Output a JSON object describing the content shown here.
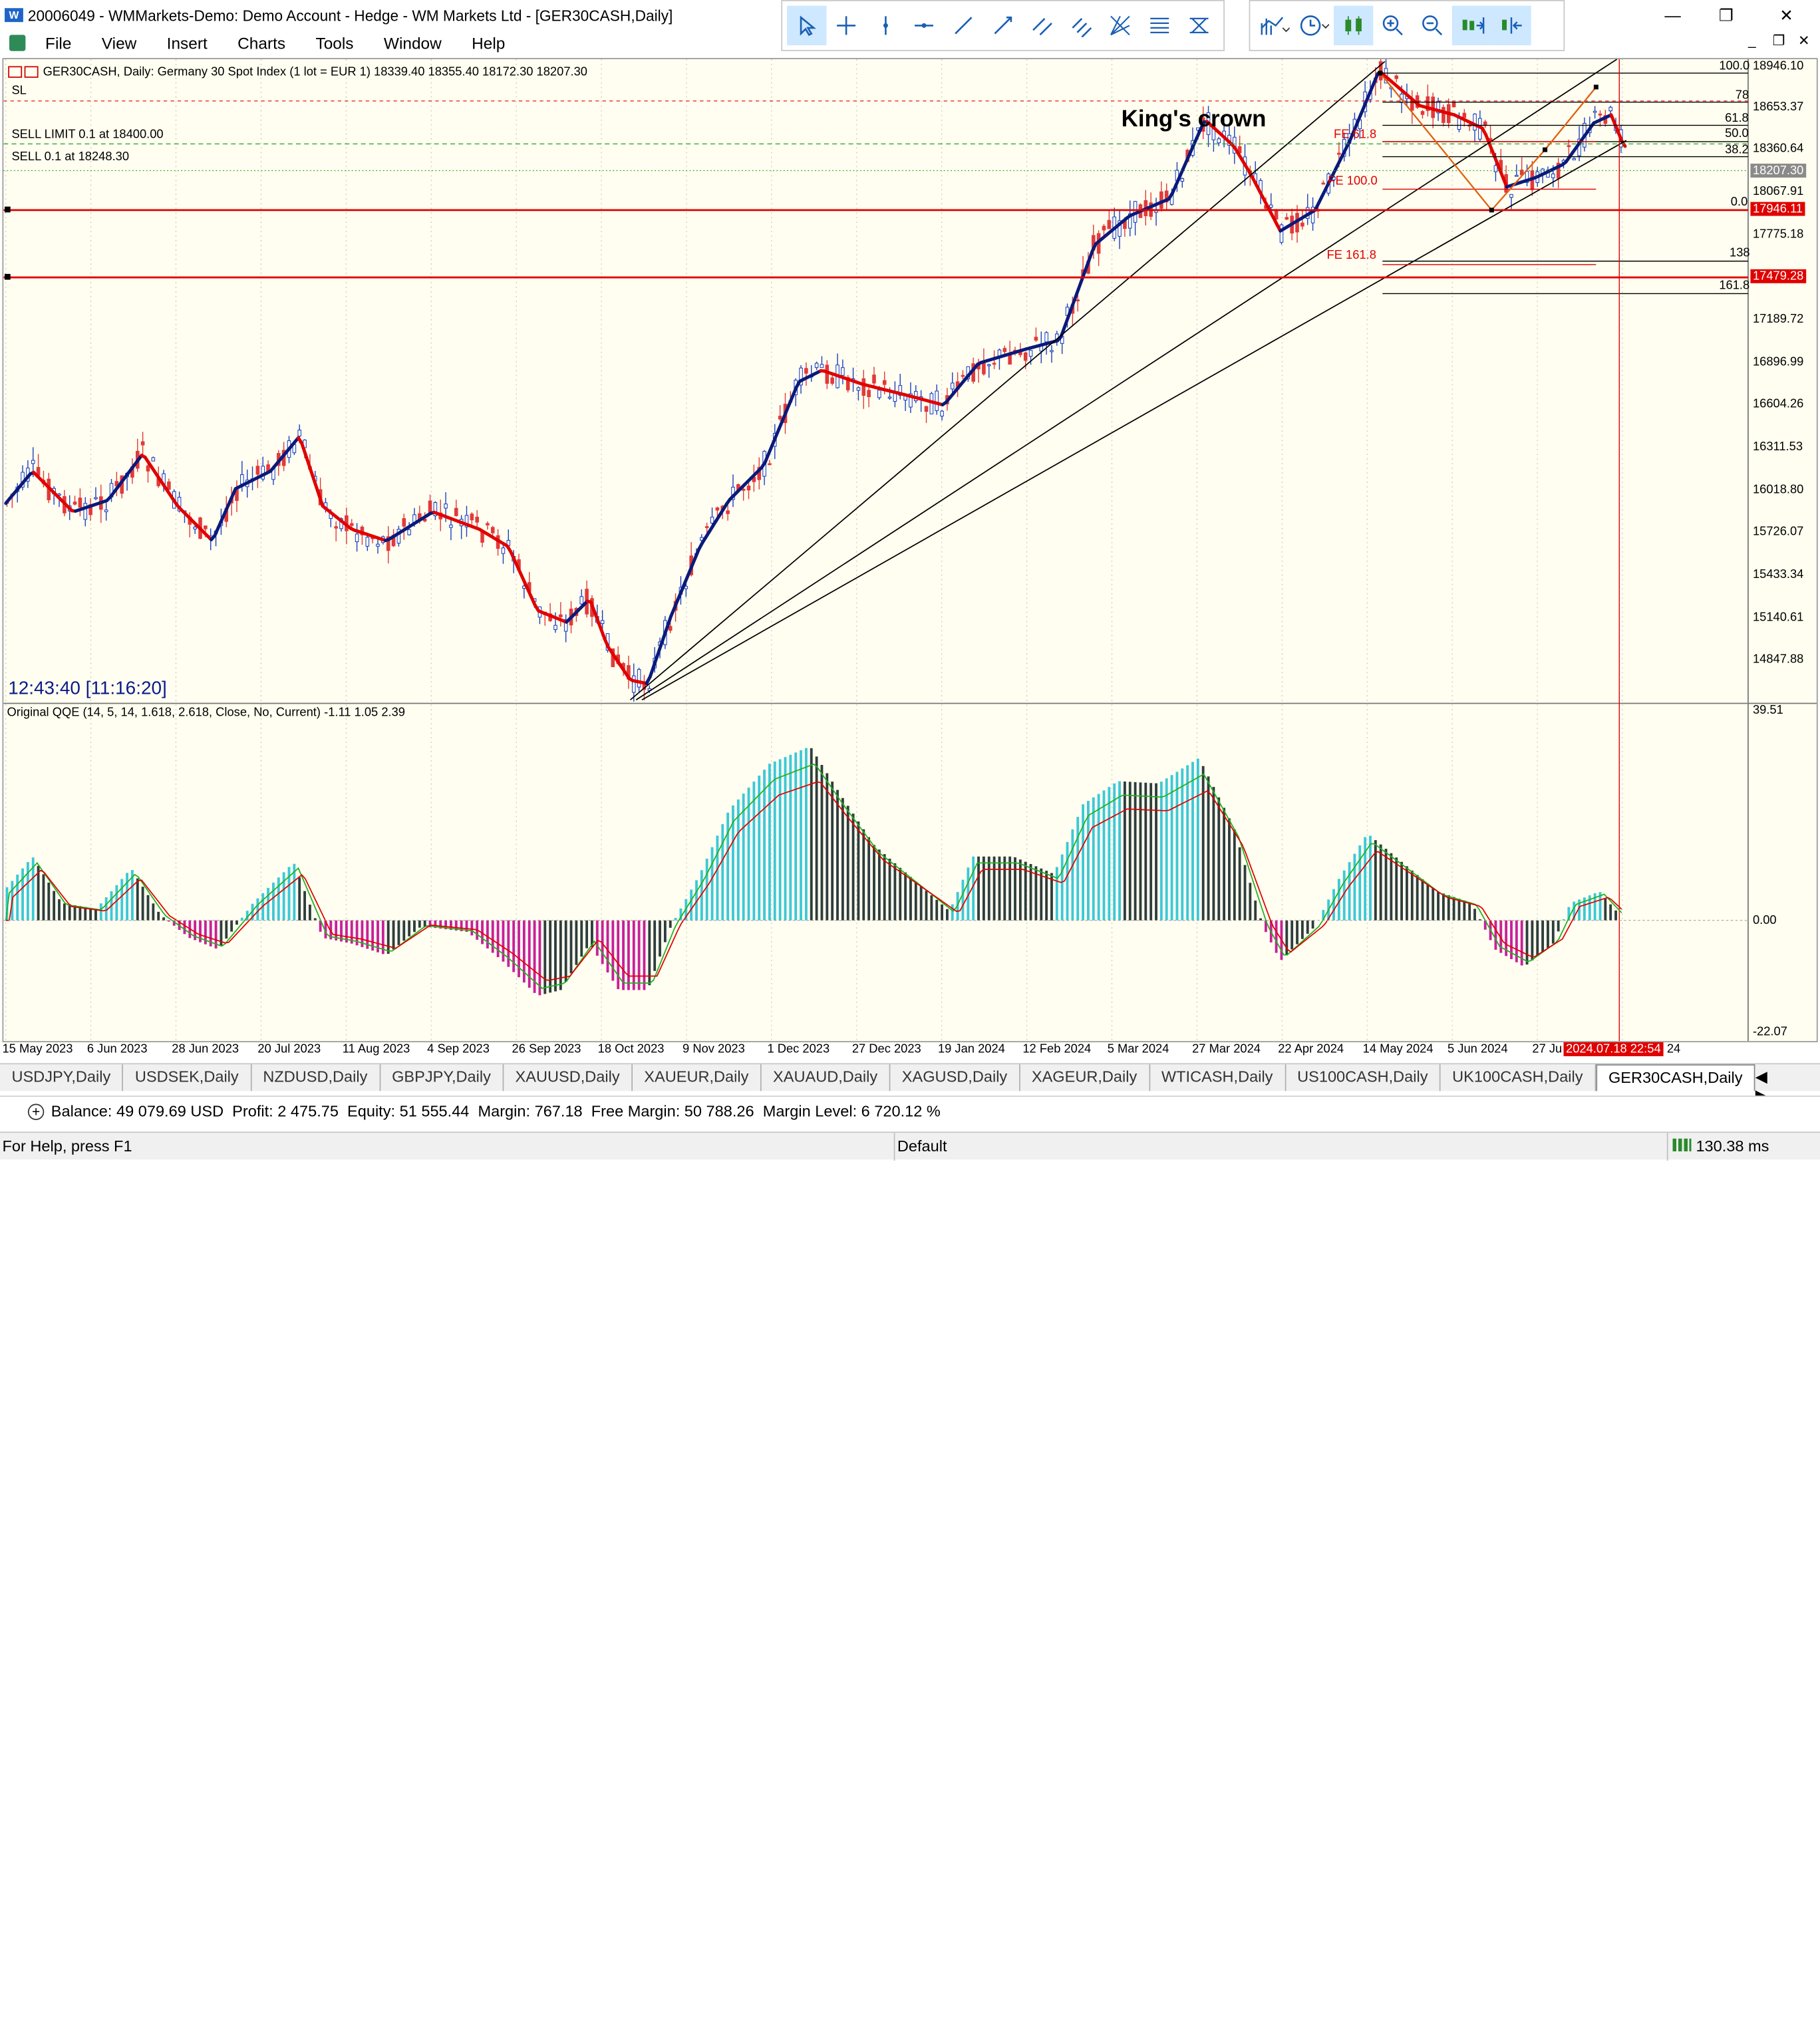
{
  "window": {
    "title": "20006049 - WMMarkets-Demo: Demo Account - Hedge - WM Markets Ltd - [GER30CASH,Daily]",
    "minimize": "—",
    "maximize": "❐",
    "close": "✕"
  },
  "menu": {
    "items": [
      "File",
      "View",
      "Insert",
      "Charts",
      "Tools",
      "Window",
      "Help"
    ]
  },
  "mdi": {
    "minimize": "_",
    "restore": "❐",
    "close": "✕"
  },
  "toolbar_left": {
    "tools": [
      "cursor-icon",
      "crosshair-icon",
      "vertical-line-icon",
      "horizontal-line-icon",
      "trend-line-icon",
      "ray-icon",
      "channel-icon",
      "parallel-lines-icon",
      "gann-icon",
      "fibo-icon",
      "fibo-fan-icon"
    ]
  },
  "toolbar_right": {
    "tools": [
      "indicators-icon",
      "timeframe-clock-icon",
      "candles-icon",
      "zoom-in-icon",
      "zoom-out-icon",
      "autoscroll-icon",
      "chart-shift-icon"
    ]
  },
  "chart": {
    "symbol_line": "GER30CASH, Daily:  Germany 30 Spot Index (1 lot = EUR 1)  18339.40 18355.40 18172.30 18207.30",
    "sl_label": "SL",
    "sell_limit_label": "SELL LIMIT 0.1 at 18400.00",
    "sell_label": "SELL 0.1 at 18248.30",
    "annotation": "King's crown",
    "clock": "12:43:40 [11:16:20]",
    "indicator_label": "Original QQE (14, 5, 14, 1.618, 2.618, Close, No, Current) -1.11 1.05 2.39",
    "price_axis": [
      "18946.10",
      "18653.37",
      "18360.64",
      "18067.91",
      "17775.18",
      "17189.72",
      "16896.99",
      "16604.26",
      "16311.53",
      "16018.80",
      "15726.07",
      "15433.34",
      "15140.61",
      "14847.88"
    ],
    "current_price": "18207.30",
    "line_price_1": "17946.11",
    "line_price_2": "17479.28",
    "fib_labels": [
      "100.0",
      "78",
      "61.8",
      "50.0",
      "38.2",
      "0.0",
      "138",
      "161.8"
    ],
    "fe_labels": [
      "FE 61.8",
      "FE 100.0",
      "FE 161.8"
    ],
    "qqe_axis": [
      "39.51",
      "0.00",
      "-22.07"
    ],
    "date_axis": [
      "15 May 2023",
      "6 Jun 2023",
      "28 Jun 2023",
      "20 Jul 2023",
      "11 Aug 2023",
      "4 Sep 2023",
      "26 Sep 2023",
      "18 Oct 2023",
      "9 Nov 2023",
      "1 Dec 2023",
      "27 Dec 2023",
      "19 Jan 2024",
      "12 Feb 2024",
      "5 Mar 2024",
      "27 Mar 2024",
      "22 Apr 2024",
      "14 May 2024",
      "5 Jun 2024",
      "27 Ju",
      "24"
    ],
    "cursor_date": "2024.07.18 22:54",
    "colors": {
      "background": "#fffef0",
      "up_trend": "#0a1a7a",
      "down_trend": "#e00000",
      "qqe_cyan": "#3cc8d8",
      "qqe_dark": "#2e3d3d",
      "qqe_magenta": "#c8209a",
      "hline": "#e00000"
    }
  },
  "tabs": [
    "USDJPY,Daily",
    "USDSEK,Daily",
    "NZDUSD,Daily",
    "GBPJPY,Daily",
    "XAUUSD,Daily",
    "XAUEUR,Daily",
    "XAUAUD,Daily",
    "XAGUSD,Daily",
    "XAGEUR,Daily",
    "WTICASH,Daily",
    "US100CASH,Daily",
    "UK100CASH,Daily",
    "GER30CASH,Daily"
  ],
  "tabs_nav": "◀ ▶",
  "balance": "Balance: 49 079.69 USD  Profit: 2 475.75  Equity: 51 555.44  Margin: 767.18  Free Margin: 50 788.26  Margin Level: 6 720.12 %",
  "status": {
    "help": "For Help, press F1",
    "profile": "Default",
    "ping": "130.38 ms"
  }
}
